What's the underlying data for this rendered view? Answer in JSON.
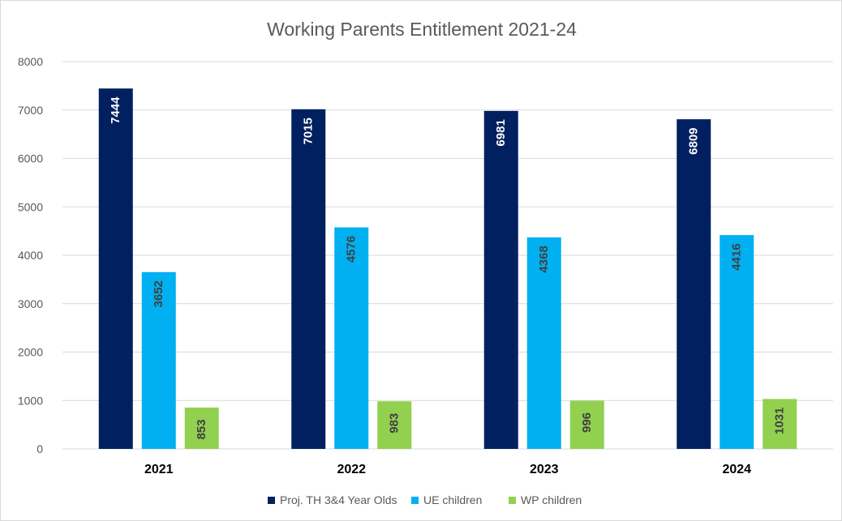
{
  "chart_data": {
    "type": "bar",
    "title": "Working Parents Entitlement 2021-24",
    "xlabel": "",
    "ylabel": "",
    "categories": [
      "2021",
      "2022",
      "2023",
      "2024"
    ],
    "ylim": [
      0,
      8000
    ],
    "yticks": [
      "0",
      "1000",
      "2000",
      "3000",
      "4000",
      "5000",
      "6000",
      "7000",
      "8000"
    ],
    "grid": true,
    "legend_position": "bottom",
    "series": [
      {
        "name": "Proj. TH 3&4 Year Olds",
        "color": "#002060",
        "label_color": "#ffffff",
        "values": [
          7444,
          7015,
          6981,
          6809
        ]
      },
      {
        "name": "UE children",
        "color": "#00b0f0",
        "label_color": "#404040",
        "values": [
          3652,
          4576,
          4368,
          4416
        ]
      },
      {
        "name": "WP children",
        "color": "#92d050",
        "label_color": "#404040",
        "values": [
          853,
          983,
          996,
          1031
        ]
      }
    ]
  }
}
